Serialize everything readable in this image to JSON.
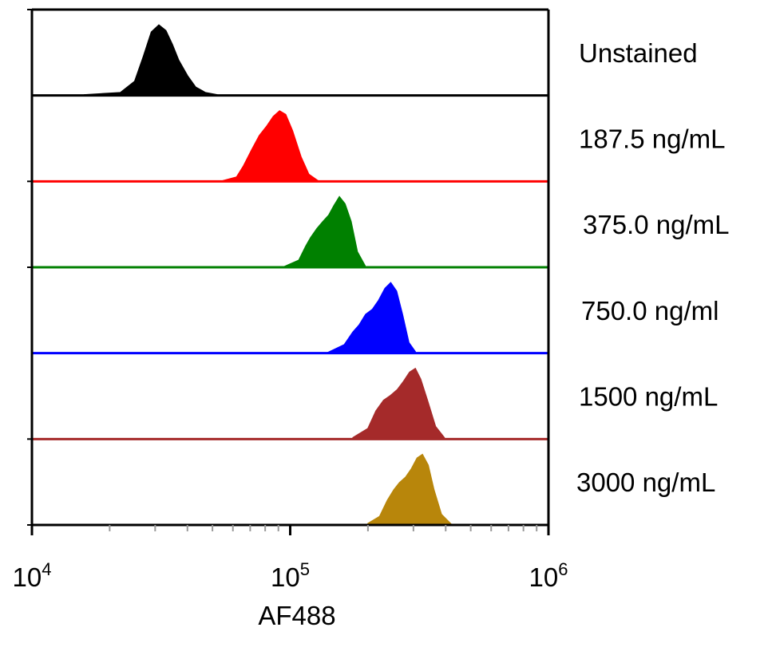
{
  "chart_data": {
    "type": "area",
    "title": "",
    "xlabel": "AF488",
    "ylabel": "",
    "x_scale": "log",
    "xlim": [
      10000,
      1000000
    ],
    "x_ticks": [
      {
        "value": 10000,
        "base": "10",
        "exp": "4"
      },
      {
        "value": 100000,
        "base": "10",
        "exp": "5"
      },
      {
        "value": 1000000,
        "base": "10",
        "exp": "6"
      }
    ],
    "series": [
      {
        "name": "Unstained",
        "color": "#000000",
        "x": [
          16000,
          22000,
          25000,
          27000,
          29000,
          31000,
          33000,
          35000,
          37000,
          40000,
          43000,
          47000,
          52000
        ],
        "y": [
          0.01,
          0.04,
          0.2,
          0.55,
          0.9,
          1.0,
          0.92,
          0.72,
          0.5,
          0.28,
          0.12,
          0.04,
          0.01
        ]
      },
      {
        "name": "187.5 ng/mL",
        "color": "#ff0000",
        "x": [
          55000,
          62000,
          66000,
          71000,
          76000,
          81000,
          86000,
          91000,
          96000,
          102000,
          110000,
          118000,
          128000
        ],
        "y": [
          0.01,
          0.06,
          0.22,
          0.45,
          0.65,
          0.78,
          0.92,
          1.0,
          0.95,
          0.72,
          0.35,
          0.1,
          0.01
        ]
      },
      {
        "name": "375.0 ng/mL",
        "color": "#008000",
        "x": [
          95000,
          108000,
          115000,
          120000,
          127000,
          134000,
          141000,
          148000,
          155000,
          163000,
          172000,
          182000,
          195000
        ],
        "y": [
          0.01,
          0.1,
          0.3,
          0.42,
          0.55,
          0.65,
          0.74,
          0.88,
          1.0,
          0.9,
          0.65,
          0.22,
          0.02
        ]
      },
      {
        "name": "750.0 ng/ml",
        "color": "#0000ff",
        "x": [
          140000,
          162000,
          175000,
          185000,
          196000,
          208000,
          220000,
          233000,
          245000,
          258000,
          272000,
          288000,
          305000
        ],
        "y": [
          0.01,
          0.12,
          0.3,
          0.4,
          0.55,
          0.62,
          0.75,
          0.92,
          1.0,
          0.88,
          0.55,
          0.15,
          0.02
        ]
      },
      {
        "name": "1500 ng/mL",
        "color": "#a52a2a",
        "x": [
          175000,
          200000,
          215000,
          230000,
          245000,
          260000,
          275000,
          290000,
          305000,
          320000,
          340000,
          365000,
          395000
        ],
        "y": [
          0.02,
          0.15,
          0.4,
          0.55,
          0.62,
          0.7,
          0.82,
          0.95,
          1.0,
          0.85,
          0.55,
          0.18,
          0.02
        ]
      },
      {
        "name": "3000 ng/mL",
        "color": "#b8860b",
        "x": [
          200000,
          222000,
          238000,
          252000,
          265000,
          280000,
          295000,
          310000,
          325000,
          342000,
          360000,
          385000,
          420000
        ],
        "y": [
          0.02,
          0.12,
          0.35,
          0.5,
          0.6,
          0.68,
          0.8,
          0.95,
          1.0,
          0.85,
          0.5,
          0.15,
          0.01
        ]
      }
    ]
  }
}
